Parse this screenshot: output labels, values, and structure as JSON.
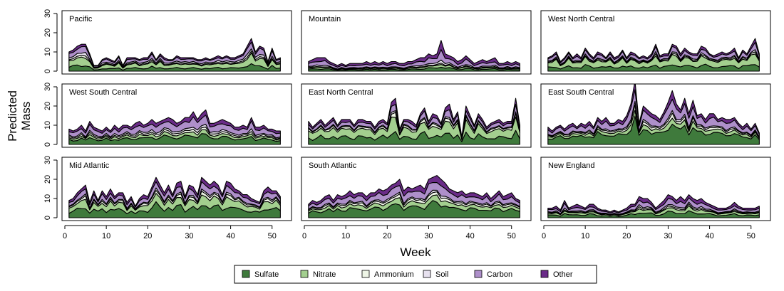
{
  "chart_data": {
    "type": "area",
    "stacked": true,
    "xlabel": "Week",
    "ylabel": [
      "Predicted",
      "Mass"
    ],
    "xlim": [
      0,
      54
    ],
    "ylim": [
      0,
      30
    ],
    "x_ticks": [
      0,
      10,
      20,
      30,
      40,
      50
    ],
    "y_ticks": [
      0,
      10,
      20,
      30
    ],
    "weeks": [
      1,
      2,
      3,
      4,
      5,
      6,
      7,
      8,
      9,
      10,
      11,
      12,
      13,
      14,
      15,
      16,
      17,
      18,
      19,
      20,
      21,
      22,
      23,
      24,
      25,
      26,
      27,
      28,
      29,
      30,
      31,
      32,
      33,
      34,
      35,
      36,
      37,
      38,
      39,
      40,
      41,
      42,
      43,
      44,
      45,
      46,
      47,
      48,
      49,
      50,
      51,
      52
    ],
    "components": [
      {
        "name": "Sulfate",
        "color": "#3f7a3c"
      },
      {
        "name": "Nitrate",
        "color": "#a3cf8f"
      },
      {
        "name": "Ammonium",
        "color": "#eef5e6"
      },
      {
        "name": "Soil",
        "color": "#e7e1ef"
      },
      {
        "name": "Carbon",
        "color": "#ae8fca"
      },
      {
        "name": "Other",
        "color": "#6a2b88"
      }
    ],
    "panels": [
      {
        "title": "Pacific",
        "totals": [
          10,
          11,
          13,
          14,
          14,
          9,
          3,
          3,
          6,
          7,
          6,
          5,
          8,
          3,
          7,
          7,
          7,
          6,
          7,
          7,
          10,
          6,
          9,
          7,
          6,
          6,
          8,
          7,
          7,
          7,
          7,
          6,
          6,
          7,
          6,
          7,
          8,
          7,
          8,
          7,
          7,
          8,
          9,
          13,
          17,
          10,
          13,
          12,
          5,
          12,
          6,
          7
        ],
        "profile": [
          0.22,
          0.3,
          0.07,
          0.1,
          0.21,
          0.1
        ]
      },
      {
        "title": "Mountain",
        "totals": [
          5,
          6,
          7,
          7,
          7,
          5,
          4,
          3,
          4,
          3,
          4,
          4,
          4,
          4,
          5,
          4,
          5,
          4,
          5,
          4,
          5,
          5,
          4,
          4,
          5,
          5,
          6,
          7,
          7,
          9,
          8,
          9,
          16,
          9,
          8,
          7,
          5,
          6,
          8,
          6,
          4,
          5,
          6,
          5,
          6,
          7,
          4,
          4,
          5,
          4,
          5,
          4
        ],
        "profile": [
          0.18,
          0.12,
          0.05,
          0.1,
          0.3,
          0.25
        ]
      },
      {
        "title": "West North Central",
        "totals": [
          7,
          8,
          10,
          5,
          7,
          10,
          7,
          9,
          7,
          12,
          9,
          7,
          10,
          9,
          7,
          10,
          7,
          8,
          11,
          7,
          10,
          9,
          7,
          8,
          7,
          9,
          14,
          8,
          9,
          9,
          14,
          13,
          9,
          12,
          10,
          9,
          9,
          13,
          12,
          9,
          8,
          9,
          10,
          9,
          10,
          12,
          7,
          11,
          9,
          13,
          17,
          9
        ],
        "profile": [
          0.25,
          0.35,
          0.06,
          0.06,
          0.18,
          0.1
        ]
      },
      {
        "title": "West South Central",
        "totals": [
          8,
          7,
          8,
          10,
          7,
          12,
          9,
          8,
          7,
          9,
          7,
          10,
          8,
          10,
          10,
          9,
          11,
          12,
          10,
          11,
          13,
          11,
          12,
          13,
          14,
          13,
          11,
          12,
          14,
          14,
          17,
          13,
          16,
          18,
          11,
          11,
          12,
          13,
          12,
          11,
          9,
          9,
          10,
          9,
          14,
          9,
          9,
          10,
          8,
          8,
          7,
          7
        ],
        "profile": [
          0.3,
          0.12,
          0.08,
          0.08,
          0.27,
          0.15
        ]
      },
      {
        "title": "East North Central",
        "totals": [
          12,
          9,
          11,
          13,
          10,
          12,
          14,
          10,
          13,
          13,
          13,
          10,
          13,
          13,
          12,
          12,
          9,
          12,
          13,
          11,
          22,
          24,
          8,
          13,
          13,
          12,
          10,
          16,
          19,
          12,
          16,
          15,
          11,
          19,
          21,
          13,
          17,
          4,
          20,
          15,
          10,
          16,
          13,
          9,
          11,
          12,
          13,
          11,
          12,
          12,
          24,
          10
        ],
        "profile": [
          0.3,
          0.33,
          0.08,
          0.04,
          0.15,
          0.1
        ]
      },
      {
        "title": "East South Central",
        "totals": [
          9,
          7,
          9,
          10,
          8,
          10,
          11,
          9,
          11,
          10,
          12,
          9,
          14,
          12,
          14,
          11,
          11,
          13,
          12,
          15,
          21,
          33,
          11,
          20,
          18,
          16,
          15,
          13,
          17,
          22,
          28,
          21,
          18,
          24,
          16,
          23,
          15,
          16,
          13,
          16,
          16,
          13,
          14,
          13,
          13,
          14,
          11,
          9,
          11,
          8,
          11,
          6
        ],
        "profile": [
          0.4,
          0.12,
          0.07,
          0.05,
          0.24,
          0.12
        ]
      },
      {
        "title": "Mid Atlantic",
        "totals": [
          9,
          10,
          13,
          15,
          17,
          8,
          14,
          9,
          14,
          11,
          15,
          11,
          13,
          13,
          8,
          11,
          6,
          10,
          12,
          11,
          16,
          21,
          17,
          13,
          17,
          12,
          18,
          19,
          11,
          17,
          16,
          12,
          21,
          19,
          17,
          19,
          17,
          12,
          19,
          18,
          15,
          14,
          12,
          12,
          10,
          9,
          8,
          14,
          16,
          14,
          14,
          11
        ],
        "profile": [
          0.32,
          0.25,
          0.08,
          0.05,
          0.18,
          0.12
        ]
      },
      {
        "title": "South Atlantic",
        "totals": [
          7,
          9,
          8,
          9,
          11,
          12,
          9,
          12,
          11,
          12,
          14,
          12,
          13,
          13,
          11,
          13,
          13,
          15,
          14,
          15,
          17,
          18,
          20,
          14,
          16,
          15,
          16,
          17,
          15,
          20,
          21,
          22,
          20,
          18,
          15,
          14,
          13,
          14,
          12,
          13,
          13,
          12,
          11,
          13,
          10,
          12,
          14,
          11,
          12,
          13,
          10,
          9
        ],
        "profile": [
          0.35,
          0.15,
          0.08,
          0.05,
          0.22,
          0.15
        ]
      },
      {
        "title": "New England",
        "totals": [
          5,
          5,
          6,
          4,
          9,
          5,
          6,
          7,
          6,
          5,
          7,
          7,
          5,
          4,
          4,
          3,
          4,
          3,
          4,
          5,
          7,
          7,
          11,
          10,
          10,
          8,
          5,
          7,
          9,
          12,
          11,
          9,
          11,
          9,
          12,
          10,
          9,
          10,
          8,
          7,
          6,
          5,
          5,
          5,
          6,
          8,
          6,
          5,
          5,
          5,
          5,
          6
        ],
        "profile": [
          0.25,
          0.18,
          0.07,
          0.08,
          0.24,
          0.18
        ]
      }
    ]
  }
}
